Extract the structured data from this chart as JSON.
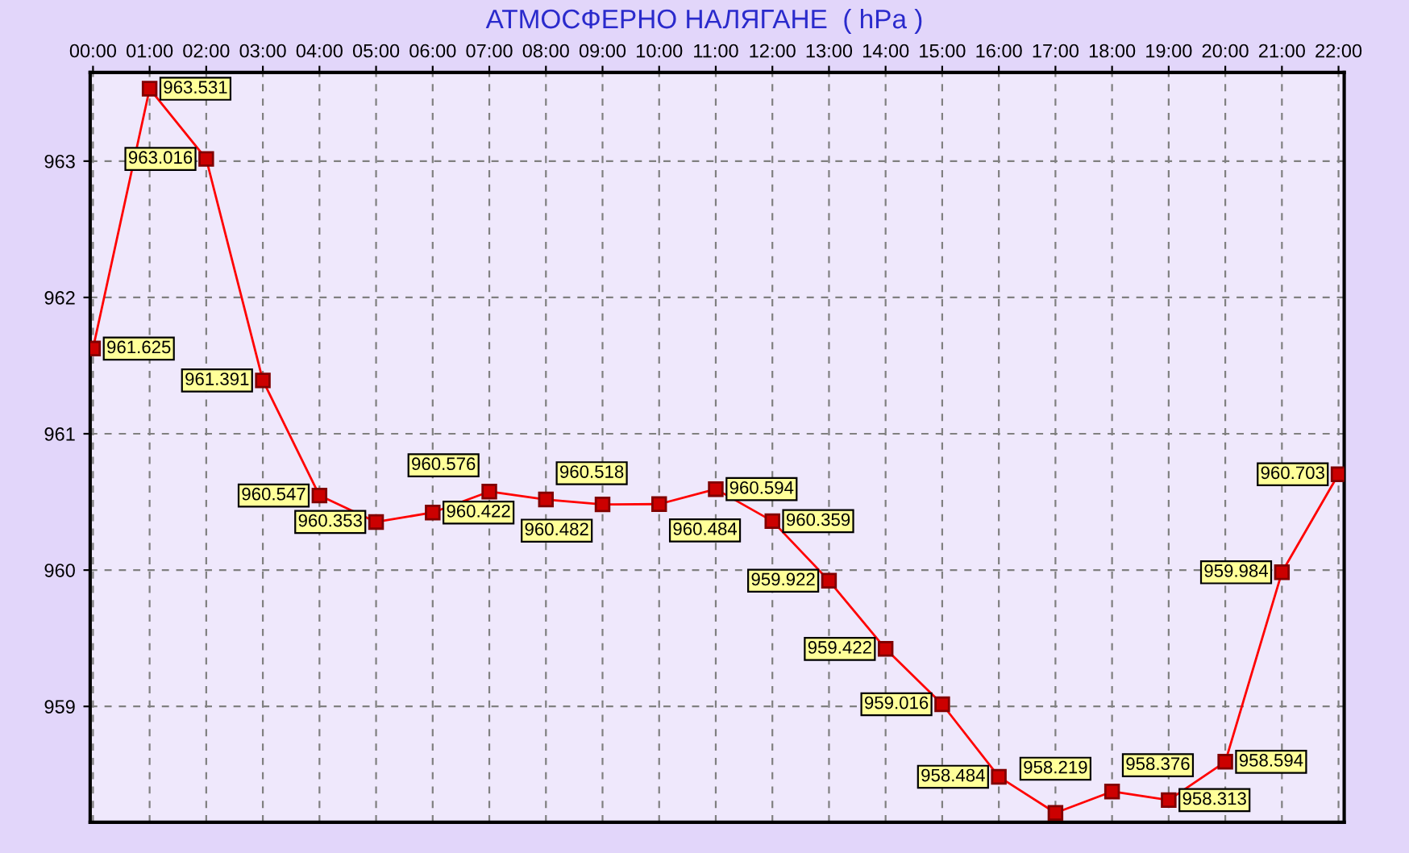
{
  "chart_data": {
    "type": "line",
    "title": "АТМОСФЕРНО НАЛЯГАНЕ  ( hPa )",
    "categories": [
      "00:00",
      "01:00",
      "02:00",
      "03:00",
      "04:00",
      "05:00",
      "06:00",
      "07:00",
      "08:00",
      "09:00",
      "10:00",
      "11:00",
      "12:00",
      "13:00",
      "14:00",
      "15:00",
      "16:00",
      "17:00",
      "18:00",
      "19:00",
      "20:00",
      "21:00",
      "22:00"
    ],
    "series": [
      {
        "color": "#ff0000",
        "values": [
          961.625,
          963.531,
          963.016,
          961.391,
          960.547,
          960.353,
          960.422,
          960.576,
          960.518,
          960.482,
          960.484,
          960.594,
          960.359,
          959.922,
          959.422,
          959.016,
          958.484,
          958.219,
          958.376,
          958.313,
          958.594,
          959.984,
          960.703
        ]
      }
    ],
    "ylim": [
      958.15,
      963.65
    ],
    "yticks": [
      959,
      960,
      961,
      962,
      963
    ],
    "grid": true,
    "marker": "square",
    "line_style": "solid",
    "data_labels": true
  }
}
